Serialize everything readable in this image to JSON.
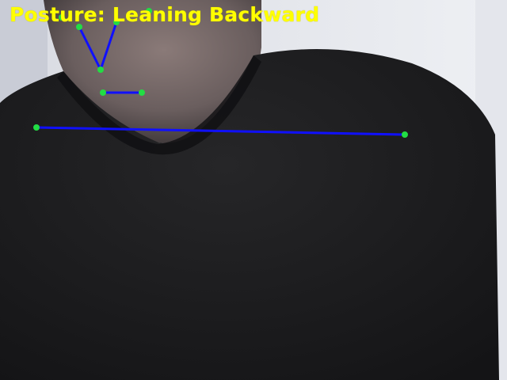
{
  "overlay": {
    "posture_text": "Posture: Leaning Backward",
    "text_color": "#ffff00",
    "skeleton_line_color": "#1010ff",
    "landmark_color": "#22dd44"
  }
}
